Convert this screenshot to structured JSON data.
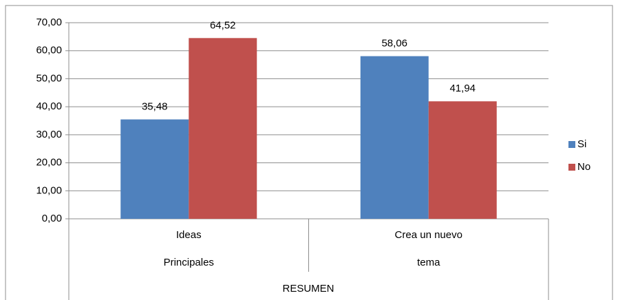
{
  "chart_data": {
    "type": "bar",
    "categories": [
      "Ideas Principales",
      "Crea un nuevo tema"
    ],
    "group_label": "RESUMEN",
    "series": [
      {
        "name": "Si",
        "color": "#4f81bd",
        "values": [
          35.48,
          58.06
        ],
        "value_labels": [
          "35,48",
          "58,06"
        ]
      },
      {
        "name": "No",
        "color": "#c0504d",
        "values": [
          64.52,
          41.94
        ],
        "value_labels": [
          "64,52",
          "41,94"
        ]
      }
    ],
    "ylim": [
      0,
      70
    ],
    "yticks": [
      {
        "value": 0,
        "label": "0,00"
      },
      {
        "value": 10,
        "label": "10,00"
      },
      {
        "value": 20,
        "label": "20,00"
      },
      {
        "value": 30,
        "label": "30,00"
      },
      {
        "value": 40,
        "label": "40,00"
      },
      {
        "value": 50,
        "label": "50,00"
      },
      {
        "value": 60,
        "label": "60,00"
      },
      {
        "value": 70,
        "label": "70,00"
      }
    ],
    "grid": true,
    "legend": "right"
  }
}
